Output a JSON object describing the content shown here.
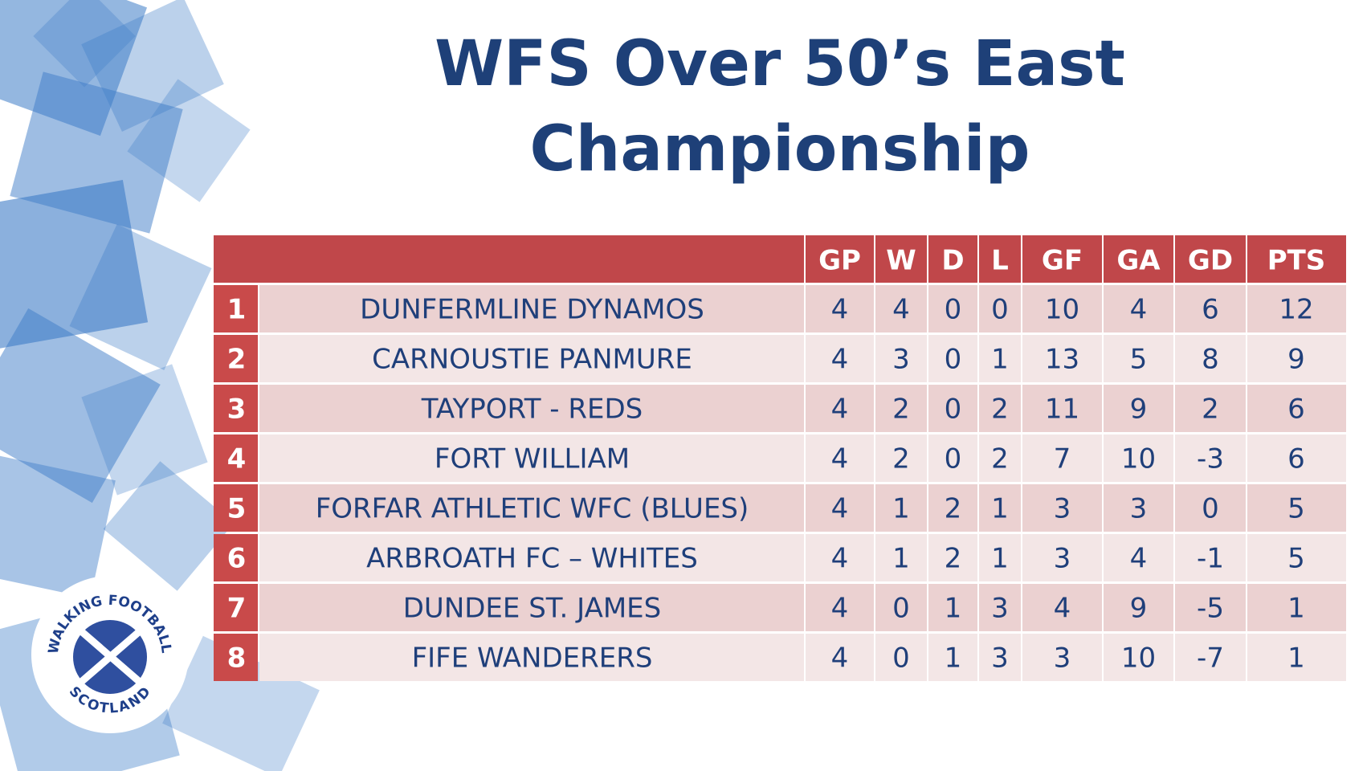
{
  "title": [
    "WFS Over 50’s East",
    "Championship"
  ],
  "table": {
    "columns": [
      "GP",
      "W",
      "D",
      "L",
      "GF",
      "GA",
      "GD",
      "PTS"
    ],
    "rows": [
      [
        1,
        "DUNFERMLINE DYNAMOS",
        4,
        4,
        0,
        0,
        10,
        4,
        6,
        12
      ],
      [
        2,
        "CARNOUSTIE PANMURE",
        4,
        3,
        0,
        1,
        13,
        5,
        8,
        9
      ],
      [
        3,
        "TAYPORT - REDS",
        4,
        2,
        0,
        2,
        11,
        9,
        2,
        6
      ],
      [
        4,
        "FORT WILLIAM",
        4,
        2,
        0,
        2,
        7,
        10,
        -3,
        6
      ],
      [
        5,
        "FORFAR ATHLETIC WFC (BLUES)",
        4,
        1,
        2,
        1,
        3,
        3,
        0,
        5
      ],
      [
        6,
        "ARBROATH FC – WHITES",
        4,
        1,
        2,
        1,
        3,
        4,
        -1,
        5
      ],
      [
        7,
        "DUNDEE ST. JAMES",
        4,
        0,
        1,
        3,
        4,
        9,
        -5,
        1
      ],
      [
        8,
        "FIFE WANDERERS",
        4,
        0,
        1,
        3,
        3,
        10,
        -7,
        1
      ]
    ]
  },
  "logo": {
    "top": "WALKING FOOTBALL",
    "bottom": "SCOTLAND"
  }
}
